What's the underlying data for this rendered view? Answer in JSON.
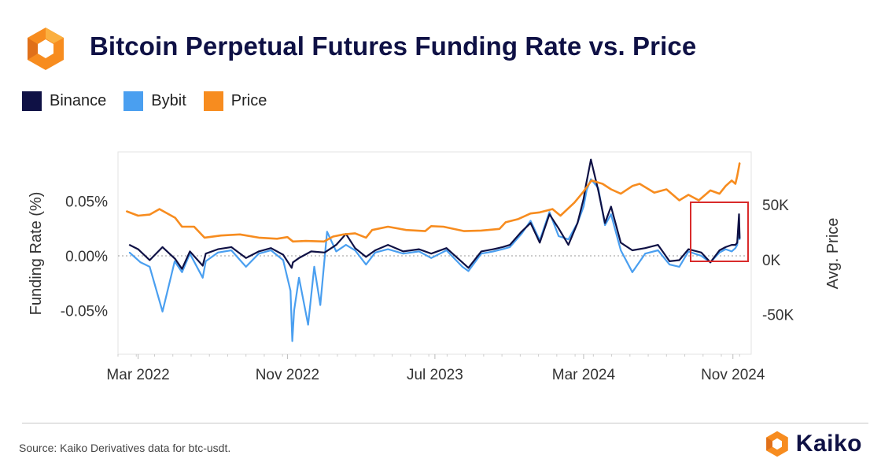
{
  "header": {
    "title": "Bitcoin Perpetual Futures Funding Rate vs. Price"
  },
  "footer": {
    "source": "Source: Kaiko Derivatives data for btc-usdt.",
    "brand": "Kaiko"
  },
  "colors": {
    "binance": "#0f1145",
    "bybit": "#4a9ff0",
    "price": "#f78c1f",
    "highlight": "#d92b2b",
    "grid": "#e6e6e6",
    "logo_orange": "#f78c1f"
  },
  "chart_data": {
    "type": "line",
    "title": "Bitcoin Perpetual Futures Funding Rate vs. Price",
    "ylabel": "Funding Rate (%)",
    "y2label": "Avg. Price",
    "ylim": [
      -0.09,
      0.095
    ],
    "y2lim": [
      -86000,
      98000
    ],
    "yticks": [
      "0.05%",
      "0.00%",
      "-0.05%"
    ],
    "yticks_values": [
      0.05,
      0.0,
      -0.05
    ],
    "y2ticks": [
      "50K",
      "0K",
      "-50K"
    ],
    "y2ticks_values": [
      50000,
      0,
      -50000
    ],
    "xticks": [
      "Mar 2022",
      "Nov 2022",
      "Jul 2023",
      "Mar 2024",
      "Nov 2024"
    ],
    "xticks_values": [
      "2022-03-01",
      "2022-11-01",
      "2023-07-01",
      "2024-03-01",
      "2024-11-01"
    ],
    "xlim": [
      "2022-01-27",
      "2024-12-01"
    ],
    "legend": "top-left",
    "grid": true,
    "series": [
      {
        "name": "Binance",
        "color": "#0f1145",
        "x": [
          "2022-02-15",
          "2022-03-01",
          "2022-03-20",
          "2022-04-10",
          "2022-05-01",
          "2022-05-12",
          "2022-05-25",
          "2022-06-15",
          "2022-06-20",
          "2022-07-10",
          "2022-08-01",
          "2022-08-25",
          "2022-09-15",
          "2022-10-05",
          "2022-10-25",
          "2022-11-08",
          "2022-11-10",
          "2022-11-20",
          "2022-12-10",
          "2023-01-01",
          "2023-01-20",
          "2023-02-05",
          "2023-02-20",
          "2023-03-10",
          "2023-03-25",
          "2023-04-15",
          "2023-05-10",
          "2023-06-05",
          "2023-06-25",
          "2023-07-20",
          "2023-08-15",
          "2023-08-25",
          "2023-09-15",
          "2023-10-05",
          "2023-10-20",
          "2023-11-01",
          "2023-11-20",
          "2023-12-05",
          "2023-12-20",
          "2024-01-05",
          "2024-01-20",
          "2024-02-05",
          "2024-02-20",
          "2024-03-01",
          "2024-03-05",
          "2024-03-13",
          "2024-03-25",
          "2024-04-05",
          "2024-04-15",
          "2024-05-01",
          "2024-05-20",
          "2024-06-10",
          "2024-07-01",
          "2024-07-20",
          "2024-08-05",
          "2024-08-20",
          "2024-09-10",
          "2024-09-25",
          "2024-10-10",
          "2024-10-20",
          "2024-10-30",
          "2024-11-05",
          "2024-11-08",
          "2024-11-11",
          "2024-11-12"
        ],
        "values": [
          0.01,
          0.006,
          -0.004,
          0.008,
          -0.003,
          -0.012,
          0.004,
          -0.009,
          0.002,
          0.006,
          0.008,
          -0.002,
          0.004,
          0.007,
          0.001,
          -0.011,
          -0.006,
          -0.002,
          0.004,
          0.003,
          0.01,
          0.02,
          0.007,
          -0.001,
          0.005,
          0.01,
          0.004,
          0.006,
          0.002,
          0.007,
          -0.006,
          -0.011,
          0.004,
          0.006,
          0.008,
          0.01,
          0.022,
          0.03,
          0.012,
          0.038,
          0.025,
          0.01,
          0.03,
          0.052,
          0.065,
          0.088,
          0.06,
          0.03,
          0.045,
          0.012,
          0.005,
          0.007,
          0.01,
          -0.005,
          -0.004,
          0.006,
          0.003,
          -0.006,
          0.005,
          0.008,
          0.01,
          0.01,
          0.012,
          0.038,
          0.016
        ]
      },
      {
        "name": "Bybit",
        "color": "#4a9ff0",
        "x": [
          "2022-02-15",
          "2022-03-05",
          "2022-03-20",
          "2022-04-10",
          "2022-04-30",
          "2022-05-12",
          "2022-05-25",
          "2022-06-15",
          "2022-06-20",
          "2022-07-10",
          "2022-08-01",
          "2022-08-25",
          "2022-09-15",
          "2022-10-05",
          "2022-10-25",
          "2022-11-06",
          "2022-11-09",
          "2022-11-12",
          "2022-11-20",
          "2022-12-05",
          "2022-12-15",
          "2022-12-25",
          "2023-01-05",
          "2023-01-20",
          "2023-02-05",
          "2023-02-20",
          "2023-03-10",
          "2023-03-25",
          "2023-04-15",
          "2023-05-10",
          "2023-06-05",
          "2023-06-25",
          "2023-07-20",
          "2023-08-15",
          "2023-08-25",
          "2023-09-15",
          "2023-10-05",
          "2023-10-20",
          "2023-11-01",
          "2023-11-20",
          "2023-12-05",
          "2023-12-20",
          "2024-01-05",
          "2024-01-20",
          "2024-02-05",
          "2024-02-20",
          "2024-03-01",
          "2024-03-06",
          "2024-03-13",
          "2024-03-25",
          "2024-04-05",
          "2024-04-15",
          "2024-05-01",
          "2024-05-20",
          "2024-06-10",
          "2024-07-01",
          "2024-07-20",
          "2024-08-05",
          "2024-08-20",
          "2024-09-10",
          "2024-09-25",
          "2024-10-10",
          "2024-10-20",
          "2024-10-30",
          "2024-11-05",
          "2024-11-08",
          "2024-11-11",
          "2024-11-12"
        ],
        "values": [
          0.003,
          -0.006,
          -0.01,
          -0.051,
          -0.005,
          -0.015,
          0.002,
          -0.02,
          -0.005,
          0.003,
          0.005,
          -0.01,
          0.002,
          0.005,
          -0.004,
          -0.032,
          -0.078,
          -0.05,
          -0.02,
          -0.063,
          -0.01,
          -0.045,
          0.022,
          0.004,
          0.01,
          0.005,
          -0.008,
          0.003,
          0.006,
          0.002,
          0.004,
          -0.002,
          0.005,
          -0.01,
          -0.014,
          0.002,
          0.004,
          0.006,
          0.008,
          0.02,
          0.032,
          0.014,
          0.04,
          0.018,
          0.015,
          0.03,
          0.045,
          0.06,
          0.07,
          0.062,
          0.028,
          0.038,
          0.005,
          -0.015,
          0.002,
          0.005,
          -0.008,
          -0.01,
          0.004,
          0.0,
          -0.006,
          0.003,
          0.006,
          0.004,
          0.007,
          0.01,
          0.03,
          0.015
        ]
      },
      {
        "name": "Price",
        "color": "#f78c1f",
        "axis": "right",
        "x": [
          "2022-02-10",
          "2022-03-01",
          "2022-03-20",
          "2022-04-05",
          "2022-05-01",
          "2022-05-12",
          "2022-06-01",
          "2022-06-18",
          "2022-07-15",
          "2022-08-15",
          "2022-09-15",
          "2022-10-15",
          "2022-11-01",
          "2022-11-10",
          "2022-12-01",
          "2022-12-31",
          "2023-01-15",
          "2023-02-01",
          "2023-02-20",
          "2023-03-10",
          "2023-03-20",
          "2023-04-15",
          "2023-05-15",
          "2023-06-15",
          "2023-06-25",
          "2023-07-15",
          "2023-08-18",
          "2023-09-15",
          "2023-10-15",
          "2023-10-25",
          "2023-11-15",
          "2023-12-05",
          "2023-12-20",
          "2024-01-10",
          "2024-01-23",
          "2024-02-15",
          "2024-03-01",
          "2024-03-14",
          "2024-04-01",
          "2024-04-15",
          "2024-05-01",
          "2024-05-20",
          "2024-06-01",
          "2024-06-25",
          "2024-07-15",
          "2024-08-05",
          "2024-08-20",
          "2024-09-06",
          "2024-09-25",
          "2024-10-10",
          "2024-10-20",
          "2024-10-30",
          "2024-11-05",
          "2024-11-08",
          "2024-11-12"
        ],
        "values": [
          44000,
          40000,
          41000,
          46000,
          38000,
          30000,
          30000,
          20000,
          22000,
          23000,
          20000,
          19000,
          20500,
          16500,
          17000,
          16500,
          21000,
          23000,
          24000,
          20000,
          27000,
          30000,
          27000,
          26000,
          30500,
          30000,
          26000,
          26500,
          28000,
          34000,
          37000,
          42000,
          43000,
          46000,
          40000,
          52000,
          62000,
          72000,
          69000,
          64000,
          60000,
          67000,
          69000,
          61000,
          64000,
          54000,
          59000,
          54000,
          63000,
          60000,
          67000,
          72000,
          69000,
          76000,
          88000
        ]
      }
    ]
  }
}
